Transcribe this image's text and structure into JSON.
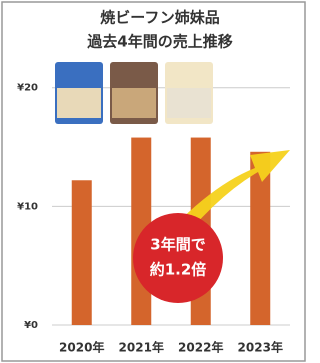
{
  "chart_data": {
    "type": "bar",
    "title": "焼ビーフン姉妹品",
    "subtitle": "過去4年間の売上推移",
    "categories": [
      "2020年",
      "2021年",
      "2022年",
      "2023年"
    ],
    "values": [
      12.2,
      15.8,
      15.8,
      14.6
    ],
    "color": "#d4652c",
    "ylim": [
      0,
      22
    ],
    "yticks": [
      {
        "value": 0,
        "label": "¥0"
      },
      {
        "value": 10,
        "label": "¥10"
      },
      {
        "value": 20,
        "label": "¥20"
      }
    ],
    "grid": true,
    "annotation": [
      "3年間で",
      "約1.2倍"
    ]
  }
}
